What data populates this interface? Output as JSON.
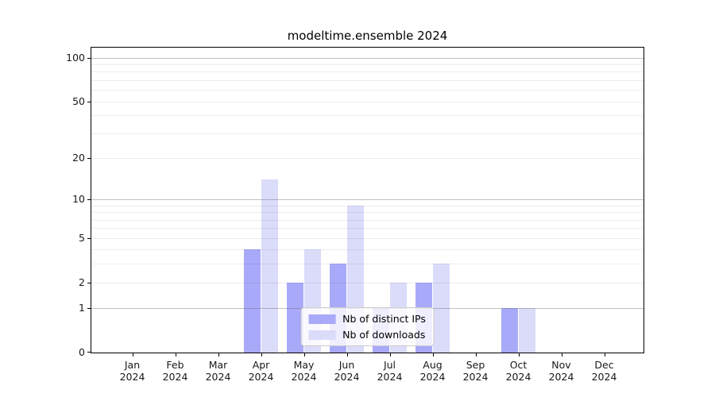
{
  "chart_data": {
    "type": "bar",
    "title": "modeltime.ensemble 2024",
    "categories": [
      {
        "month": "Jan",
        "year": "2024"
      },
      {
        "month": "Feb",
        "year": "2024"
      },
      {
        "month": "Mar",
        "year": "2024"
      },
      {
        "month": "Apr",
        "year": "2024"
      },
      {
        "month": "May",
        "year": "2024"
      },
      {
        "month": "Jun",
        "year": "2024"
      },
      {
        "month": "Jul",
        "year": "2024"
      },
      {
        "month": "Aug",
        "year": "2024"
      },
      {
        "month": "Sep",
        "year": "2024"
      },
      {
        "month": "Oct",
        "year": "2024"
      },
      {
        "month": "Nov",
        "year": "2024"
      },
      {
        "month": "Dec",
        "year": "2024"
      }
    ],
    "series": [
      {
        "key": "distinct-ips",
        "name": "Nb of distinct IPs",
        "color": "#a9a9fa",
        "values": [
          0,
          0,
          0,
          4,
          2,
          3,
          1,
          2,
          0,
          1,
          0,
          0
        ]
      },
      {
        "key": "downloads",
        "name": "Nb of downloads",
        "color": "#dbdbfa",
        "values": [
          0,
          0,
          0,
          14,
          4,
          9,
          2,
          3,
          0,
          1,
          0,
          0
        ]
      }
    ],
    "xlabel": "",
    "ylabel": "",
    "yscale": "log1p",
    "ylim": [
      0,
      117
    ],
    "yticks": [
      0,
      1,
      2,
      5,
      10,
      20,
      50,
      100
    ],
    "grid": {
      "major": [
        1,
        10,
        100
      ],
      "minor": [
        2,
        3,
        4,
        5,
        6,
        7,
        8,
        9,
        20,
        30,
        40,
        50,
        60,
        70,
        80,
        90
      ]
    },
    "legend_position": "lower center"
  }
}
